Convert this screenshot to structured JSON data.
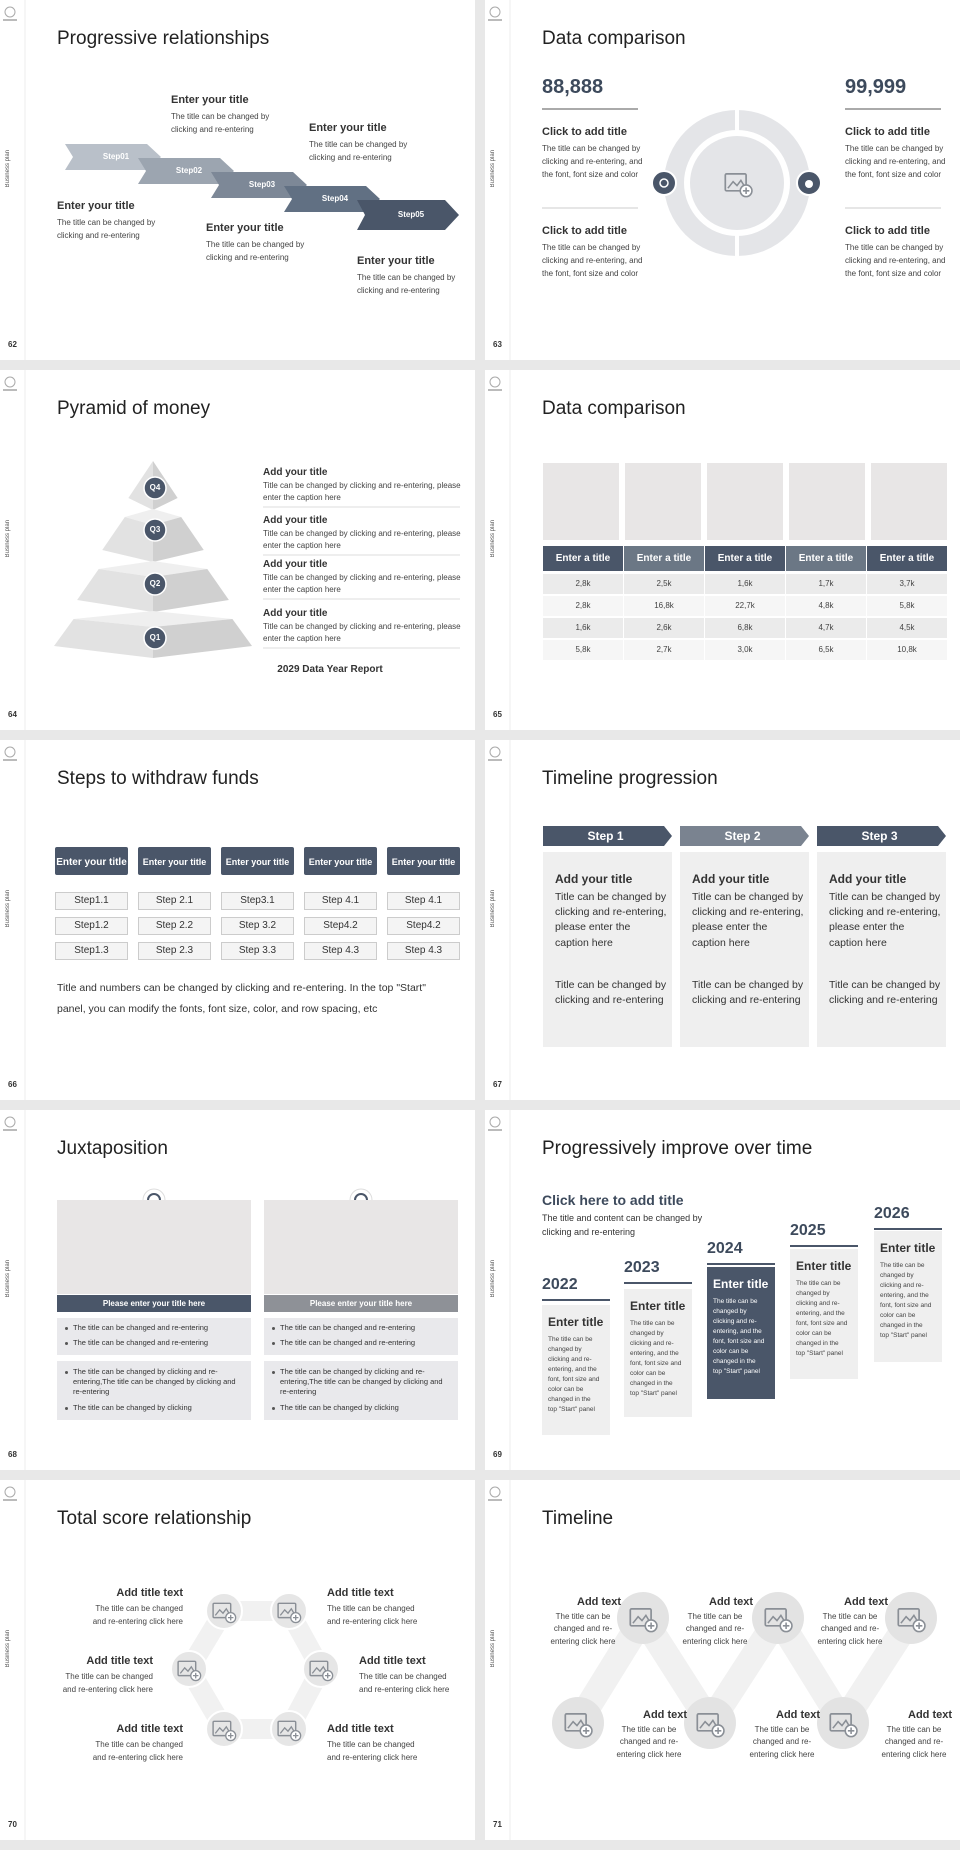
{
  "side_label": "Business plan",
  "slides": [
    {
      "page": "62",
      "title": "Progressive relationships",
      "steps": [
        "Step01",
        "Step02",
        "Step03",
        "Step04",
        "Step05"
      ],
      "items": [
        {
          "title": "Enter your title",
          "text": "The title can be changed by clicking and re-entering"
        },
        {
          "title": "Enter your title",
          "text": "The title can be changed by clicking and re-entering"
        },
        {
          "title": "Enter your title",
          "text": "The title can be changed by clicking and re-entering"
        },
        {
          "title": "Enter your title",
          "text": "The title can be changed by clicking and re-entering"
        },
        {
          "title": "Enter your title",
          "text": "The title can be changed by clicking and re-entering"
        }
      ]
    },
    {
      "page": "63",
      "title": "Data comparison",
      "left": {
        "number": "88,888",
        "items": [
          {
            "title": "Click to add title",
            "text": "The title can be changed by clicking and re-entering, and the font, font size and color"
          },
          {
            "title": "Click to add title",
            "text": "The title can be changed by clicking and re-entering, and the font, font size and color"
          }
        ]
      },
      "right": {
        "number": "99,999",
        "items": [
          {
            "title": "Click to add title",
            "text": "The title can be changed by clicking and re-entering, and the font, font size and color"
          },
          {
            "title": "Click to add title",
            "text": "The title can be changed by clicking and re-entering, and the font, font size and color"
          }
        ]
      }
    },
    {
      "page": "64",
      "title": "Pyramid of money",
      "levels": [
        "Q4",
        "Q3",
        "Q2",
        "Q1"
      ],
      "items": [
        {
          "title": "Add your title",
          "text": "Title can be changed by clicking and re-entering, please enter the caption here"
        },
        {
          "title": "Add your title",
          "text": "Title can be changed by clicking and re-entering, please enter the caption here"
        },
        {
          "title": "Add your title",
          "text": "Title can be changed by clicking and re-entering, please enter the caption here"
        },
        {
          "title": "Add your title",
          "text": "Title can be changed by clicking and re-entering, please enter the caption here"
        }
      ],
      "footer": "2029 Data Year Report"
    },
    {
      "page": "65",
      "title": "Data comparison",
      "table": {
        "header": [
          "Enter a title",
          "Enter a title",
          "Enter a title",
          "Enter a title",
          "Enter a title"
        ],
        "rows": [
          [
            "2,8k",
            "2,5k",
            "1,6k",
            "1,7k",
            "3,7k"
          ],
          [
            "2,8k",
            "16,8k",
            "22,7k",
            "4,8k",
            "5,8k"
          ],
          [
            "1,6k",
            "2,6k",
            "6,8k",
            "4,7k",
            "4,5k"
          ],
          [
            "5,8k",
            "2,7k",
            "3,0k",
            "6,5k",
            "10,8k"
          ]
        ]
      }
    },
    {
      "page": "66",
      "title": "Steps to withdraw funds",
      "columns": [
        {
          "title": "Enter your title",
          "steps": [
            "Step1.1",
            "Step1.2",
            "Step1.3"
          ]
        },
        {
          "title": "Enter your title",
          "steps": [
            "Step 2.1",
            "Step 2.2",
            "Step 2.3"
          ]
        },
        {
          "title": "Enter your title",
          "steps": [
            "Step3.1",
            "Step 3.2",
            "Step 3.3"
          ]
        },
        {
          "title": "Enter your title",
          "steps": [
            "Step 4.1",
            "Step4.2",
            "Step 4.3"
          ]
        },
        {
          "title": "Enter your title",
          "steps": [
            "Step 4.1",
            "Step4.2",
            "Step 4.3"
          ]
        }
      ],
      "note": "Title and numbers can be changed by clicking and re-entering. In the top \"Start\" panel, you can modify the fonts, font size, color, and row spacing, etc"
    },
    {
      "page": "67",
      "title": "Timeline progression",
      "columns": [
        {
          "step": "Step 1",
          "title": "Add your title",
          "text": "Title can be changed by clicking and re-entering, please enter the caption here",
          "text2": "Title can be changed by clicking and re-entering"
        },
        {
          "step": "Step 2",
          "title": "Add your title",
          "text": "Title can be changed by clicking and re-entering, please enter the caption here",
          "text2": "Title can be changed by clicking and re-entering"
        },
        {
          "step": "Step 3",
          "title": "Add your title",
          "text": "Title can be changed by clicking and re-entering, please enter the caption here",
          "text2": "Title can be changed by clicking and re-entering"
        }
      ]
    },
    {
      "page": "68",
      "title": "Juxtaposition",
      "panels": [
        {
          "title": "Please enter your title here",
          "bullets": [
            "The title can be changed and re-entering",
            "The title can be changed and re-entering",
            "The title can be changed by clicking and re-entering,The title can be changed by clicking and re-entering",
            "The title can be changed by clicking"
          ]
        },
        {
          "title": "Please enter your title here",
          "bullets": [
            "The title can be changed and re-entering",
            "The title can be changed and re-entering",
            "The title can be changed by clicking and re-entering,The title can be changed by clicking and re-entering",
            "The title can be changed by clicking"
          ]
        }
      ]
    },
    {
      "page": "69",
      "title": "Progressively improve over time",
      "heading": "Click here to add title",
      "text": "The title and content can be changed by clicking and re-entering",
      "columns": [
        {
          "year": "2022",
          "title": "Enter title",
          "text": "The title can be changed by clicking and re-entering, and the font, font size and color can be changed in the top \"Start\" panel"
        },
        {
          "year": "2023",
          "title": "Enter title",
          "text": "The title can be changed by clicking and re-entering, and the font, font size and color can be changed in the top \"Start\" panel"
        },
        {
          "year": "2024",
          "title": "Enter title",
          "text": "The title can be changed by clicking and re-entering, and the font, font size and color can be changed in the top \"Start\" panel"
        },
        {
          "year": "2025",
          "title": "Enter title",
          "text": "The title can be changed by clicking and re-entering, and the font, font size and color can be changed in the top \"Start\" panel"
        },
        {
          "year": "2026",
          "title": "Enter title",
          "text": "The title can be changed by clicking and re-entering, and the font, font size and color can be changed in the top \"Start\" panel"
        }
      ]
    },
    {
      "page": "70",
      "title": "Total score relationship",
      "items": [
        {
          "title": "Add title text",
          "text": "The title can be changed and re-entering click here"
        },
        {
          "title": "Add title text",
          "text": "The title can be changed and re-entering click here"
        },
        {
          "title": "Add title text",
          "text": "The title can be changed and re-entering click here"
        },
        {
          "title": "Add title text",
          "text": "The title can be changed and re-entering click here"
        },
        {
          "title": "Add title text",
          "text": "The title can be changed and re-entering click here"
        },
        {
          "title": "Add title text",
          "text": "The title can be changed and re-entering click here"
        }
      ]
    },
    {
      "page": "71",
      "title": "Timeline",
      "items": [
        {
          "title": "Add text",
          "text": "The title can be changed and re-entering click here"
        },
        {
          "title": "Add text",
          "text": "The title can be changed and re-entering click here"
        },
        {
          "title": "Add text",
          "text": "The title can be changed and re-entering click here"
        },
        {
          "title": "Add text",
          "text": "The title can be changed and re-entering click here"
        },
        {
          "title": "Add text",
          "text": "The title can be changed and re-entering click here"
        },
        {
          "title": "Add text",
          "text": "The title can be changed and re-entering click here"
        }
      ]
    }
  ]
}
